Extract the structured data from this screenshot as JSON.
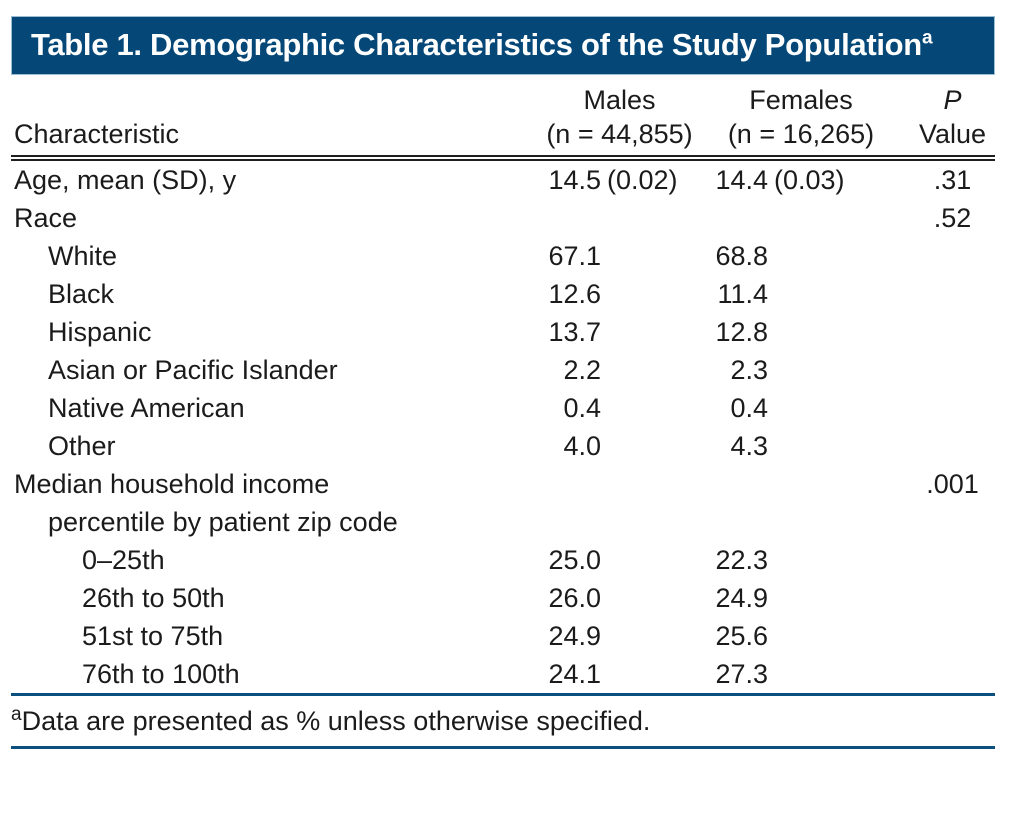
{
  "title": {
    "text": "Table 1. Demographic Characteristics of the Study Population",
    "superscript": "a"
  },
  "table": {
    "columns": {
      "characteristic": "Characteristic",
      "males_line1": "Males",
      "males_line2": "(n = 44,855)",
      "females_line1": "Females",
      "females_line2": "(n = 16,265)",
      "p_line1": "P",
      "p_line2": "Value"
    },
    "rows": [
      {
        "label": "Age, mean (SD), y",
        "indent": 0,
        "males": "14.5",
        "males_paren": "(0.02)",
        "females": "14.4",
        "females_paren": "(0.03)",
        "p": ".31"
      },
      {
        "label": "Race",
        "indent": 0,
        "p": ".52"
      },
      {
        "label": "White",
        "indent": 1,
        "males": "67.1",
        "females": "68.8"
      },
      {
        "label": "Black",
        "indent": 1,
        "males": "12.6",
        "females": "11.4"
      },
      {
        "label": "Hispanic",
        "indent": 1,
        "males": "13.7",
        "females": "12.8"
      },
      {
        "label": "Asian or Pacific Islander",
        "indent": 1,
        "males": "2.2",
        "females": "2.3"
      },
      {
        "label": "Native American",
        "indent": 1,
        "males": "0.4",
        "females": "0.4"
      },
      {
        "label": "Other",
        "indent": 1,
        "males": "4.0",
        "females": "4.3"
      },
      {
        "label": "Median household income",
        "indent": 0,
        "p": ".001"
      },
      {
        "label": "percentile by patient zip code",
        "indent": 1
      },
      {
        "label": "0–25th",
        "indent": 2,
        "males": "25.0",
        "females": "22.3"
      },
      {
        "label": "26th to 50th",
        "indent": 2,
        "males": "26.0",
        "females": "24.9"
      },
      {
        "label": "51st to 75th",
        "indent": 2,
        "males": "24.9",
        "females": "25.6"
      },
      {
        "label": "76th to 100th",
        "indent": 2,
        "males": "24.1",
        "females": "27.3"
      }
    ]
  },
  "footnote": {
    "marker": "a",
    "text": "Data are presented as % unless otherwise specified."
  },
  "colors": {
    "header_bg": "#054878",
    "rule_blue": "#0a4f7d",
    "text_color": "#1b1b1b"
  }
}
